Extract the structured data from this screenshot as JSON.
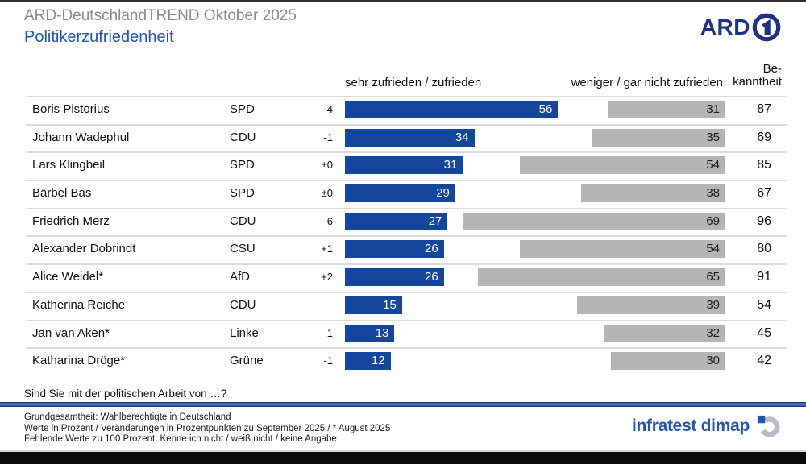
{
  "header": {
    "supertitle": "ARD-DeutschlandTREND Oktober 2025",
    "title": "Politikerzufriedenheit",
    "ard_logo_text": "ARD"
  },
  "chart_data": {
    "type": "bar",
    "orientation": "horizontal",
    "title": "Politikerzufriedenheit",
    "subtitle": "ARD-DeutschlandTREND Oktober 2025",
    "unit": "Prozent",
    "xlim": [
      0,
      100
    ],
    "legend": {
      "satisfied": "sehr zufrieden / zufrieden",
      "dissatisfied": "weniger / gar nicht zufrieden",
      "awareness_line1": "Be-",
      "awareness_line2": "kanntheit"
    },
    "colors": {
      "satisfied_bar": "#14479b",
      "dissatisfied_bar": "#b5b5b5",
      "accent_blue": "#2456a8",
      "ard_navy": "#1e3182"
    },
    "rows": [
      {
        "name": "Boris Pistorius",
        "party": "SPD",
        "change": "-4",
        "satisfied": 56,
        "dissatisfied": 31,
        "awareness": 87
      },
      {
        "name": "Johann Wadephul",
        "party": "CDU",
        "change": "-1",
        "satisfied": 34,
        "dissatisfied": 35,
        "awareness": 69
      },
      {
        "name": "Lars Klingbeil",
        "party": "SPD",
        "change": "±0",
        "satisfied": 31,
        "dissatisfied": 54,
        "awareness": 85
      },
      {
        "name": "Bärbel Bas",
        "party": "SPD",
        "change": "±0",
        "satisfied": 29,
        "dissatisfied": 38,
        "awareness": 67
      },
      {
        "name": "Friedrich Merz",
        "party": "CDU",
        "change": "-6",
        "satisfied": 27,
        "dissatisfied": 69,
        "awareness": 96
      },
      {
        "name": "Alexander Dobrindt",
        "party": "CSU",
        "change": "+1",
        "satisfied": 26,
        "dissatisfied": 54,
        "awareness": 80
      },
      {
        "name": "Alice Weidel*",
        "party": "AfD",
        "change": "+2",
        "satisfied": 26,
        "dissatisfied": 65,
        "awareness": 91
      },
      {
        "name": "Katherina Reiche",
        "party": "CDU",
        "change": "",
        "satisfied": 15,
        "dissatisfied": 39,
        "awareness": 54
      },
      {
        "name": "Jan van Aken*",
        "party": "Linke",
        "change": "-1",
        "satisfied": 13,
        "dissatisfied": 32,
        "awareness": 45
      },
      {
        "name": "Katharina Dröge*",
        "party": "Grüne",
        "change": "-1",
        "satisfied": 12,
        "dissatisfied": 30,
        "awareness": 42
      }
    ]
  },
  "footer": {
    "question": "Sind Sie mit der politischen Arbeit von …?",
    "notes": [
      "Grundgesamtheit: Wahlberechtigte in Deutschland",
      "Werte in Prozent / Veränderungen in Prozentpunkten zu September 2025 / * August 2025",
      "Fehlende Werte zu 100 Prozent: Kenne ich nicht / weiß nicht / keine Angabe"
    ],
    "brand": "infratest dimap"
  }
}
